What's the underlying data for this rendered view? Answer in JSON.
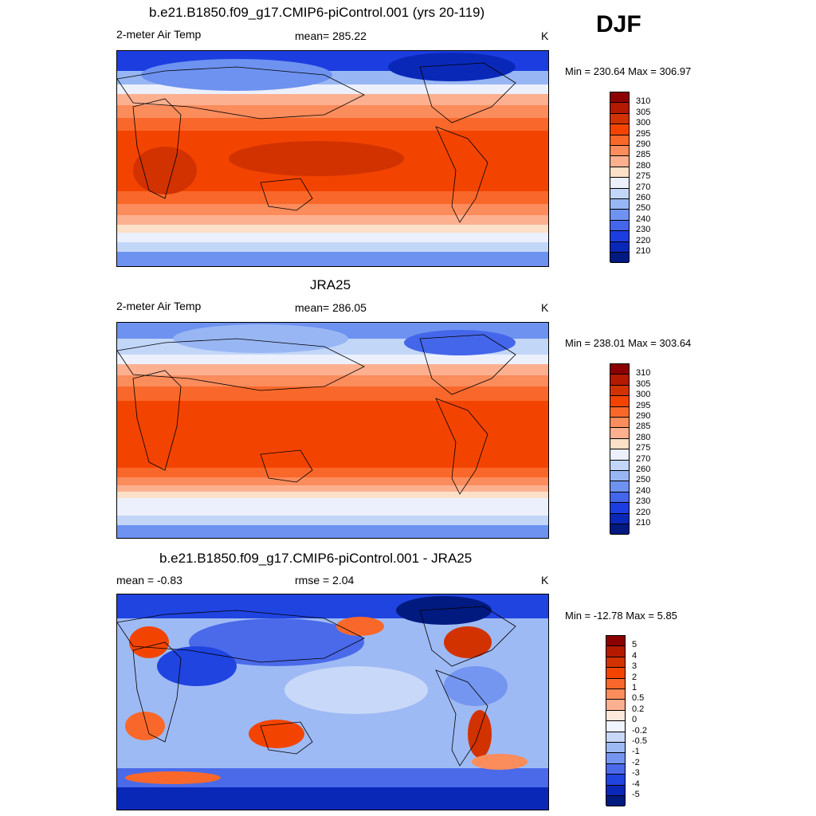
{
  "season": "DJF",
  "panels": [
    {
      "title": "b.e21.B1850.f09_g17.CMIP6-piControl.001 (yrs 20-119)",
      "left_label": "2-meter Air Temp",
      "center_label": "mean= 285.22",
      "units": "K",
      "minmax": "Min = 230.64 Max = 306.97",
      "colorbar": {
        "labels": [
          "310",
          "305",
          "300",
          "295",
          "290",
          "285",
          "280",
          "275",
          "270",
          "260",
          "250",
          "240",
          "230",
          "220",
          "210"
        ],
        "colors": [
          "#8b0000",
          "#b31a00",
          "#d23200",
          "#f24400",
          "#f9682a",
          "#fb8c5c",
          "#fdb090",
          "#fde0c8",
          "#ecf0fc",
          "#c2d6f8",
          "#98b6f4",
          "#6e92f0",
          "#4466ea",
          "#1c3ee0",
          "#0a28b8",
          "#001a80"
        ]
      }
    },
    {
      "title": "JRA25",
      "left_label": "2-meter Air Temp",
      "center_label": "mean= 286.05",
      "units": "K",
      "minmax": "Min = 238.01 Max = 303.64",
      "colorbar": {
        "labels": [
          "310",
          "305",
          "300",
          "295",
          "290",
          "285",
          "280",
          "275",
          "270",
          "260",
          "250",
          "240",
          "230",
          "220",
          "210"
        ],
        "colors": [
          "#8b0000",
          "#b31a00",
          "#d23200",
          "#f24400",
          "#f9682a",
          "#fb8c5c",
          "#fdb090",
          "#fde0c8",
          "#ecf0fc",
          "#c2d6f8",
          "#98b6f4",
          "#6e92f0",
          "#4466ea",
          "#1c3ee0",
          "#0a28b8",
          "#001a80"
        ]
      }
    },
    {
      "title": "b.e21.B1850.f09_g17.CMIP6-piControl.001 - JRA25",
      "left_label": "mean =  -0.83",
      "center_label": "rmse =   2.04",
      "units": "K",
      "minmax": "Min = -12.78 Max =   5.85",
      "colorbar": {
        "labels": [
          "5",
          "4",
          "3",
          "2",
          "1",
          "0.5",
          "0.2",
          "0",
          "-0.2",
          "-0.5",
          "-1",
          "-2",
          "-3",
          "-4",
          "-5"
        ],
        "colors": [
          "#8b0000",
          "#b31a00",
          "#d23200",
          "#f24400",
          "#f9682a",
          "#fb8c5c",
          "#fdb090",
          "#fde8dc",
          "#f0f4fc",
          "#c8d8f8",
          "#9ebaf4",
          "#7496f0",
          "#4a6aea",
          "#2044e0",
          "#0a28b8",
          "#001a80"
        ]
      }
    }
  ]
}
